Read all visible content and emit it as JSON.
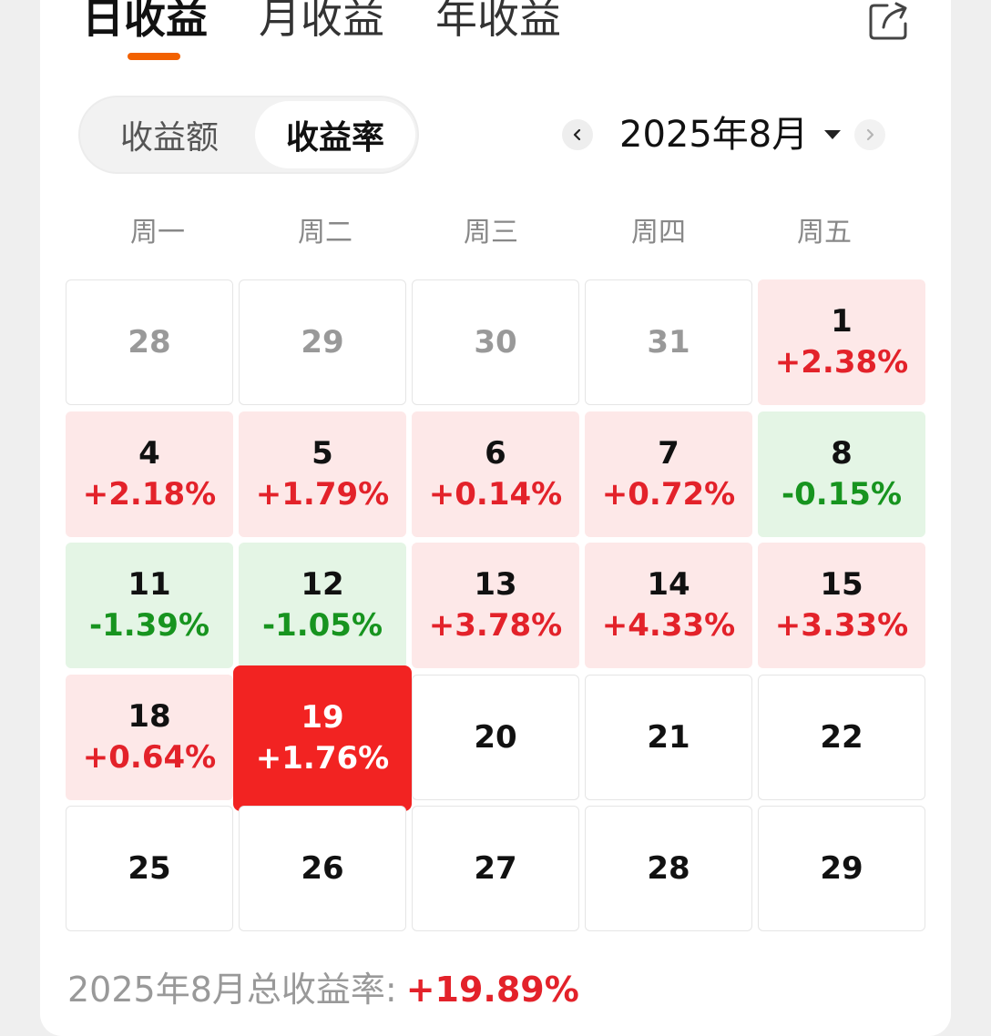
{
  "tabs": [
    "日收益",
    "月收益",
    "年收益"
  ],
  "active_tab": 0,
  "segment": {
    "items": [
      "收益额",
      "收益率"
    ],
    "selected": 1
  },
  "month_nav": {
    "label": "2025年8月"
  },
  "weekdays": [
    "周一",
    "周二",
    "周三",
    "周四",
    "周五"
  ],
  "calendar": [
    [
      {
        "day": "28",
        "rate": "",
        "state": "muted"
      },
      {
        "day": "29",
        "rate": "",
        "state": "muted"
      },
      {
        "day": "30",
        "rate": "",
        "state": "muted"
      },
      {
        "day": "31",
        "rate": "",
        "state": "muted"
      },
      {
        "day": "1",
        "rate": "+2.38%",
        "state": "pos"
      }
    ],
    [
      {
        "day": "4",
        "rate": "+2.18%",
        "state": "pos"
      },
      {
        "day": "5",
        "rate": "+1.79%",
        "state": "pos"
      },
      {
        "day": "6",
        "rate": "+0.14%",
        "state": "pos"
      },
      {
        "day": "7",
        "rate": "+0.72%",
        "state": "pos"
      },
      {
        "day": "8",
        "rate": "-0.15%",
        "state": "neg"
      }
    ],
    [
      {
        "day": "11",
        "rate": "-1.39%",
        "state": "neg"
      },
      {
        "day": "12",
        "rate": "-1.05%",
        "state": "neg"
      },
      {
        "day": "13",
        "rate": "+3.78%",
        "state": "pos"
      },
      {
        "day": "14",
        "rate": "+4.33%",
        "state": "pos"
      },
      {
        "day": "15",
        "rate": "+3.33%",
        "state": "pos"
      }
    ],
    [
      {
        "day": "18",
        "rate": "+0.64%",
        "state": "pos"
      },
      {
        "day": "19",
        "rate": "+1.76%",
        "state": "sel"
      },
      {
        "day": "20",
        "rate": "",
        "state": "future"
      },
      {
        "day": "21",
        "rate": "",
        "state": "future"
      },
      {
        "day": "22",
        "rate": "",
        "state": "future"
      }
    ],
    [
      {
        "day": "25",
        "rate": "",
        "state": "future"
      },
      {
        "day": "26",
        "rate": "",
        "state": "future"
      },
      {
        "day": "27",
        "rate": "",
        "state": "future"
      },
      {
        "day": "28",
        "rate": "",
        "state": "future"
      },
      {
        "day": "29",
        "rate": "",
        "state": "future"
      }
    ]
  ],
  "summary": {
    "label": "2025年8月总收益率:",
    "value": "+19.89%"
  },
  "colors": {
    "accent": "#f26100",
    "positive": "#e3222a",
    "negative": "#17941f",
    "selected": "#f22322"
  }
}
